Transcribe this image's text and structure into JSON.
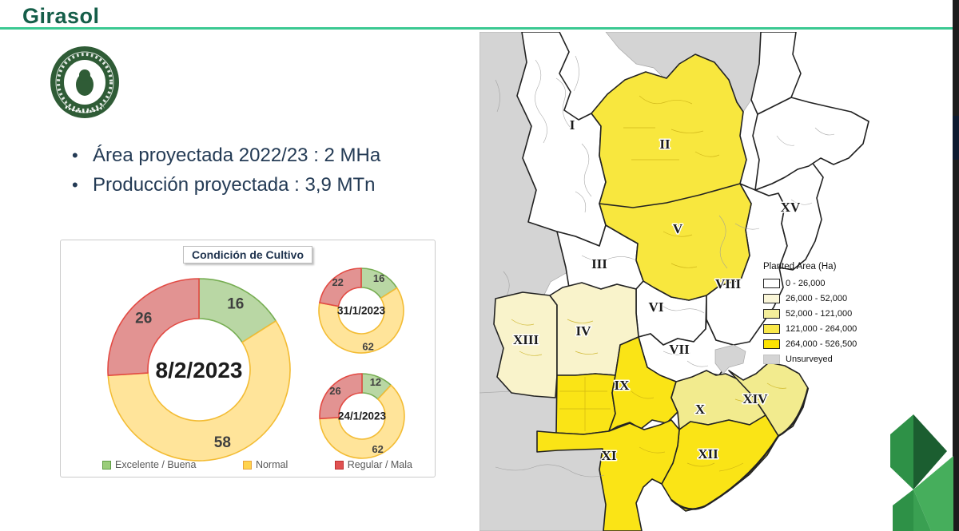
{
  "page": {
    "title": "Girasol"
  },
  "branding": {
    "seal_title": "Bolsa de Cereales"
  },
  "bullets": [
    "Área proyectada 2022/23 : 2 MHa",
    "Producción proyectada : 3,9 MTn"
  ],
  "chart_data": {
    "type": "donut",
    "title": "Condición de Cultivo",
    "categories": [
      "Excelente / Buena",
      "Normal",
      "Regular / Mala"
    ],
    "slice_colors": {
      "excelente_fill": "#B9D7A4",
      "excelente_stroke": "#76AD52",
      "normal_fill": "#FFE49A",
      "normal_stroke": "#F3BC34",
      "regular_fill": "#E29392",
      "regular_stroke": "#E24A43"
    },
    "legend_swatch_colors": {
      "excelente_fill": "#9ACD7A",
      "excelente_stroke": "#5E9C43",
      "normal_fill": "#FFD34D",
      "normal_stroke": "#E8A33D",
      "regular_fill": "#E05252",
      "regular_stroke": "#C03030"
    },
    "donuts": [
      {
        "center_label": "8/2/2023",
        "values": [
          16,
          58,
          26
        ]
      },
      {
        "center_label": "31/1/2023",
        "values": [
          16,
          62,
          22
        ]
      },
      {
        "center_label": "24/1/2023",
        "values": [
          12,
          62,
          26
        ]
      }
    ],
    "legend": [
      "Excelente / Buena",
      "Normal",
      "Regular / Mala"
    ]
  },
  "map": {
    "legend_title": "Planted Area (Ha)",
    "legend_items": [
      {
        "label": "0 - 26,000",
        "color": "#FFFFFF"
      },
      {
        "label": "26,000 - 52,000",
        "color": "#FAF6D8"
      },
      {
        "label": "52,000 - 121,000",
        "color": "#F4EE9B"
      },
      {
        "label": "121,000 - 264,000",
        "color": "#F9E84A"
      },
      {
        "label": "264,000 - 526,500",
        "color": "#FCE303"
      },
      {
        "label": "Unsurveyed",
        "color": "#D4D4D4"
      }
    ],
    "region_labels": [
      "I",
      "II",
      "III",
      "IV",
      "V",
      "VI",
      "VII",
      "VIII",
      "IX",
      "X",
      "XI",
      "XII",
      "XIII",
      "XIV",
      "XV"
    ]
  }
}
